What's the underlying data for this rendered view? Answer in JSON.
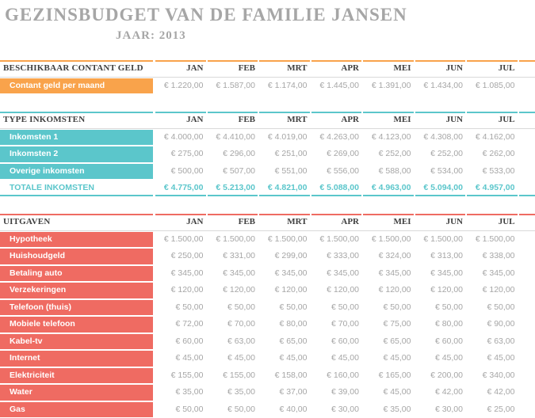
{
  "title": "GEZINSBUDGET VAN DE FAMILIE JANSEN",
  "year_label": "JAAR: 2013",
  "months": [
    "JAN",
    "FEB",
    "MRT",
    "APR",
    "MEI",
    "JUN",
    "JUL"
  ],
  "colors": {
    "orange": "#f9a34b",
    "teal": "#5bc6cb",
    "red": "#ef6b62"
  },
  "cash": {
    "header": "BESCHIKBAAR CONTANT GELD",
    "rows": [
      {
        "label": "Contant geld per maand",
        "values": [
          "€ 1.220,00",
          "€ 1.587,00",
          "€ 1.174,00",
          "€ 1.445,00",
          "€ 1.391,00",
          "€ 1.434,00",
          "€ 1.085,00"
        ]
      }
    ]
  },
  "income": {
    "header": "TYPE INKOMSTEN",
    "rows": [
      {
        "label": "Inkomsten 1",
        "values": [
          "€ 4.000,00",
          "€ 4.410,00",
          "€ 4.019,00",
          "€ 4.263,00",
          "€ 4.123,00",
          "€ 4.308,00",
          "€ 4.162,00"
        ]
      },
      {
        "label": "Inkomsten 2",
        "values": [
          "€ 275,00",
          "€ 296,00",
          "€ 251,00",
          "€ 269,00",
          "€ 252,00",
          "€ 252,00",
          "€ 262,00"
        ]
      },
      {
        "label": "Overige inkomsten",
        "values": [
          "€ 500,00",
          "€ 507,00",
          "€ 551,00",
          "€ 556,00",
          "€ 588,00",
          "€ 534,00",
          "€ 533,00"
        ]
      }
    ],
    "total_label": "TOTALE INKOMSTEN",
    "total_values": [
      "€ 4.775,00",
      "€ 5.213,00",
      "€ 4.821,00",
      "€ 5.088,00",
      "€ 4.963,00",
      "€ 5.094,00",
      "€ 4.957,00"
    ]
  },
  "expenses": {
    "header": "UITGAVEN",
    "rows": [
      {
        "label": "Hypotheek",
        "values": [
          "€ 1.500,00",
          "€ 1.500,00",
          "€ 1.500,00",
          "€ 1.500,00",
          "€ 1.500,00",
          "€ 1.500,00",
          "€ 1.500,00"
        ]
      },
      {
        "label": "Huishoudgeld",
        "values": [
          "€ 250,00",
          "€ 331,00",
          "€ 299,00",
          "€ 333,00",
          "€ 324,00",
          "€ 313,00",
          "€ 338,00"
        ]
      },
      {
        "label": "Betaling auto",
        "values": [
          "€ 345,00",
          "€ 345,00",
          "€ 345,00",
          "€ 345,00",
          "€ 345,00",
          "€ 345,00",
          "€ 345,00"
        ]
      },
      {
        "label": "Verzekeringen",
        "values": [
          "€ 120,00",
          "€ 120,00",
          "€ 120,00",
          "€ 120,00",
          "€ 120,00",
          "€ 120,00",
          "€ 120,00"
        ]
      },
      {
        "label": "Telefoon (thuis)",
        "values": [
          "€ 50,00",
          "€ 50,00",
          "€ 50,00",
          "€ 50,00",
          "€ 50,00",
          "€ 50,00",
          "€ 50,00"
        ]
      },
      {
        "label": "Mobiele telefoon",
        "values": [
          "€ 72,00",
          "€ 70,00",
          "€ 80,00",
          "€ 70,00",
          "€ 75,00",
          "€ 80,00",
          "€ 90,00"
        ]
      },
      {
        "label": "Kabel-tv",
        "values": [
          "€ 60,00",
          "€ 63,00",
          "€ 65,00",
          "€ 60,00",
          "€ 65,00",
          "€ 60,00",
          "€ 63,00"
        ]
      },
      {
        "label": "Internet",
        "values": [
          "€ 45,00",
          "€ 45,00",
          "€ 45,00",
          "€ 45,00",
          "€ 45,00",
          "€ 45,00",
          "€ 45,00"
        ]
      },
      {
        "label": "Elektriciteit",
        "values": [
          "€ 155,00",
          "€ 155,00",
          "€ 158,00",
          "€ 160,00",
          "€ 165,00",
          "€ 200,00",
          "€ 340,00"
        ]
      },
      {
        "label": "Water",
        "values": [
          "€ 35,00",
          "€ 35,00",
          "€ 37,00",
          "€ 39,00",
          "€ 45,00",
          "€ 42,00",
          "€ 42,00"
        ]
      },
      {
        "label": "Gas",
        "values": [
          "€ 50,00",
          "€ 50,00",
          "€ 40,00",
          "€ 30,00",
          "€ 35,00",
          "€ 30,00",
          "€ 25,00"
        ]
      }
    ]
  }
}
